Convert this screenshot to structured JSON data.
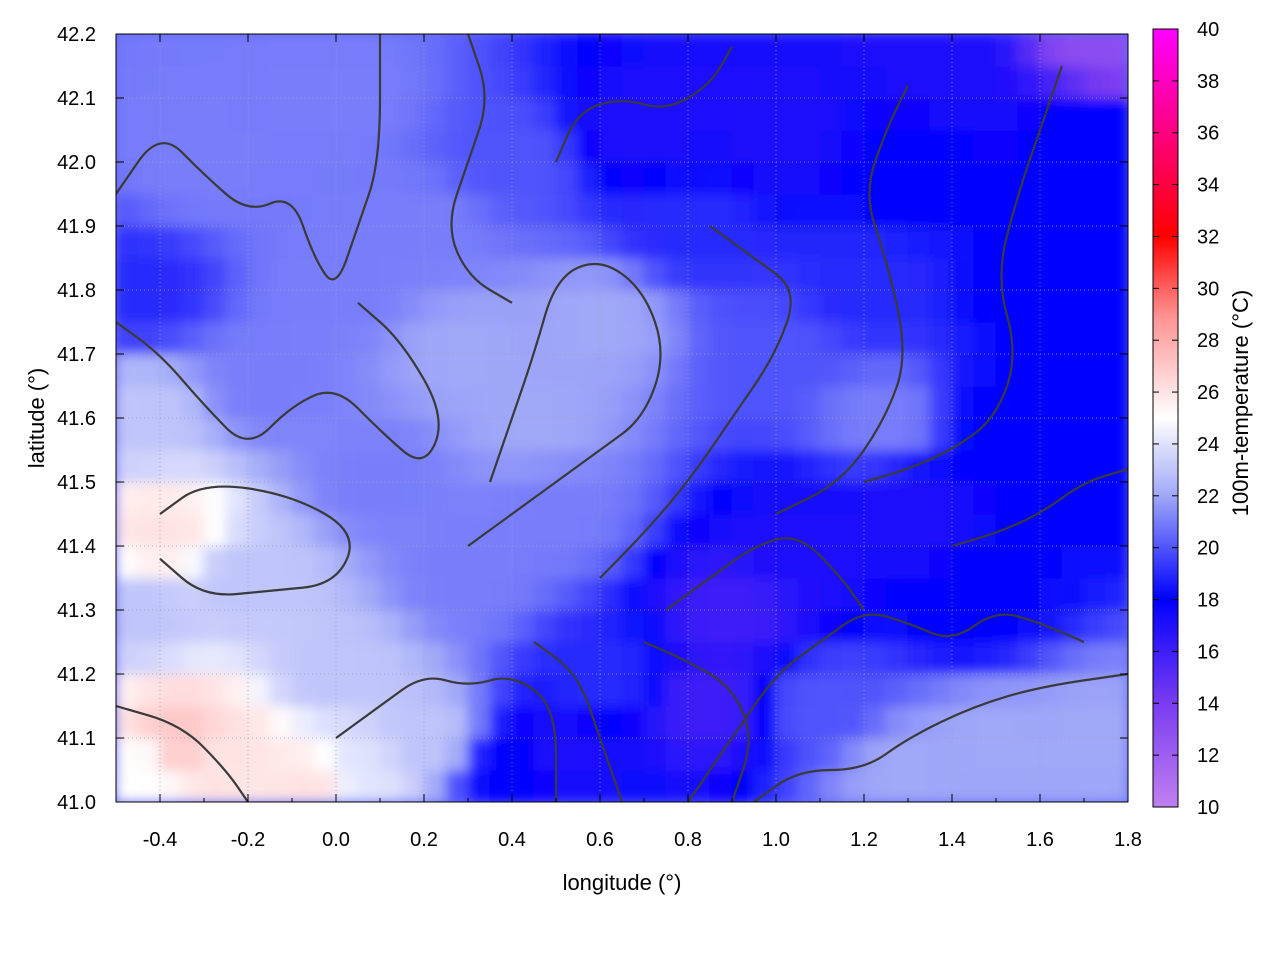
{
  "chart_data": {
    "type": "heatmap",
    "xlabel": "longitude (°)",
    "ylabel": "latitude (°)",
    "colorbar_label": "100m-temperature (°C)",
    "xlim": [
      -0.5,
      1.8
    ],
    "ylim": [
      41.0,
      42.2
    ],
    "x_ticks": [
      "-0.4",
      "-0.2",
      "0.0",
      "0.2",
      "0.4",
      "0.6",
      "0.8",
      "1.0",
      "1.2",
      "1.4",
      "1.6",
      "1.8"
    ],
    "x_tick_values": [
      -0.4,
      -0.2,
      0.0,
      0.2,
      0.4,
      0.6,
      0.8,
      1.0,
      1.2,
      1.4,
      1.6,
      1.8
    ],
    "y_ticks": [
      "41.0",
      "41.1",
      "41.2",
      "41.3",
      "41.4",
      "41.5",
      "41.6",
      "41.7",
      "41.8",
      "41.9",
      "42.0",
      "42.1",
      "42.2"
    ],
    "y_tick_values": [
      41.0,
      41.1,
      41.2,
      41.3,
      41.4,
      41.5,
      41.6,
      41.7,
      41.8,
      41.9,
      42.0,
      42.1,
      42.2
    ],
    "colorbar_range": [
      10,
      40
    ],
    "colorbar_ticks": [
      "10",
      "12",
      "14",
      "16",
      "18",
      "20",
      "22",
      "24",
      "26",
      "28",
      "30",
      "32",
      "34",
      "36",
      "38",
      "40"
    ],
    "colorbar_tick_values": [
      10,
      12,
      14,
      16,
      18,
      20,
      22,
      24,
      26,
      28,
      30,
      32,
      34,
      36,
      38,
      40
    ],
    "colorscale": [
      {
        "value": 10,
        "color": "#c080f0"
      },
      {
        "value": 14,
        "color": "#7a3cf0"
      },
      {
        "value": 18,
        "color": "#0000ff"
      },
      {
        "value": 22,
        "color": "#a0a8f8"
      },
      {
        "value": 25,
        "color": "#ffffff"
      },
      {
        "value": 29,
        "color": "#ff9090"
      },
      {
        "value": 32,
        "color": "#ff0000"
      },
      {
        "value": 36,
        "color": "#ff0080"
      },
      {
        "value": 40,
        "color": "#ff00ff"
      }
    ],
    "grid": true,
    "contour_color": "#3a3a3a",
    "field_samples": [
      {
        "lon": -0.45,
        "lat": 41.05,
        "value": 25
      },
      {
        "lon": -0.35,
        "lat": 41.1,
        "value": 27
      },
      {
        "lon": -0.25,
        "lat": 41.08,
        "value": 26
      },
      {
        "lon": -0.05,
        "lat": 41.03,
        "value": 26
      },
      {
        "lon": 0.05,
        "lat": 41.05,
        "value": 24
      },
      {
        "lon": -0.4,
        "lat": 41.42,
        "value": 26
      },
      {
        "lon": -0.45,
        "lat": 41.3,
        "value": 23
      },
      {
        "lon": -0.45,
        "lat": 41.6,
        "value": 23
      },
      {
        "lon": -0.2,
        "lat": 41.35,
        "value": 23
      },
      {
        "lon": 0.0,
        "lat": 41.2,
        "value": 23
      },
      {
        "lon": 0.2,
        "lat": 41.1,
        "value": 23
      },
      {
        "lon": -0.45,
        "lat": 41.8,
        "value": 19
      },
      {
        "lon": -0.3,
        "lat": 42.0,
        "value": 21
      },
      {
        "lon": 0.0,
        "lat": 42.1,
        "value": 21
      },
      {
        "lon": 0.0,
        "lat": 41.8,
        "value": 21
      },
      {
        "lon": 0.3,
        "lat": 41.7,
        "value": 22
      },
      {
        "lon": 0.45,
        "lat": 41.6,
        "value": 22
      },
      {
        "lon": 0.6,
        "lat": 41.75,
        "value": 22
      },
      {
        "lon": 0.5,
        "lat": 41.45,
        "value": 21
      },
      {
        "lon": 0.3,
        "lat": 41.35,
        "value": 21
      },
      {
        "lon": 0.2,
        "lat": 41.9,
        "value": 21
      },
      {
        "lon": 0.4,
        "lat": 42.0,
        "value": 20
      },
      {
        "lon": 0.5,
        "lat": 41.08,
        "value": 17
      },
      {
        "lon": 0.4,
        "lat": 41.05,
        "value": 18
      },
      {
        "lon": 0.6,
        "lat": 41.2,
        "value": 19
      },
      {
        "lon": 0.85,
        "lat": 41.15,
        "value": 16
      },
      {
        "lon": 0.9,
        "lat": 41.3,
        "value": 16
      },
      {
        "lon": 1.05,
        "lat": 41.4,
        "value": 17
      },
      {
        "lon": 1.3,
        "lat": 41.45,
        "value": 17
      },
      {
        "lon": 1.45,
        "lat": 41.3,
        "value": 18
      },
      {
        "lon": 1.25,
        "lat": 41.6,
        "value": 21
      },
      {
        "lon": 1.5,
        "lat": 41.6,
        "value": 18
      },
      {
        "lon": 1.6,
        "lat": 41.8,
        "value": 18
      },
      {
        "lon": 1.7,
        "lat": 42.05,
        "value": 18
      },
      {
        "lon": 1.3,
        "lat": 42.0,
        "value": 18
      },
      {
        "lon": 1.0,
        "lat": 42.05,
        "value": 17
      },
      {
        "lon": 0.7,
        "lat": 42.05,
        "value": 17
      },
      {
        "lon": 0.8,
        "lat": 41.9,
        "value": 19
      },
      {
        "lon": 1.0,
        "lat": 41.7,
        "value": 20
      },
      {
        "lon": 1.2,
        "lat": 41.8,
        "value": 19
      },
      {
        "lon": 1.75,
        "lat": 42.18,
        "value": 13
      },
      {
        "lon": 1.4,
        "lat": 42.15,
        "value": 17
      },
      {
        "lon": 1.5,
        "lat": 41.1,
        "value": 22
      },
      {
        "lon": 1.7,
        "lat": 41.1,
        "value": 22
      },
      {
        "lon": 1.3,
        "lat": 41.05,
        "value": 22
      },
      {
        "lon": 1.1,
        "lat": 41.15,
        "value": 20
      },
      {
        "lon": 1.75,
        "lat": 41.5,
        "value": 18
      },
      {
        "lon": 0.1,
        "lat": 41.5,
        "value": 21
      },
      {
        "lon": -0.15,
        "lat": 41.65,
        "value": 21
      }
    ]
  }
}
